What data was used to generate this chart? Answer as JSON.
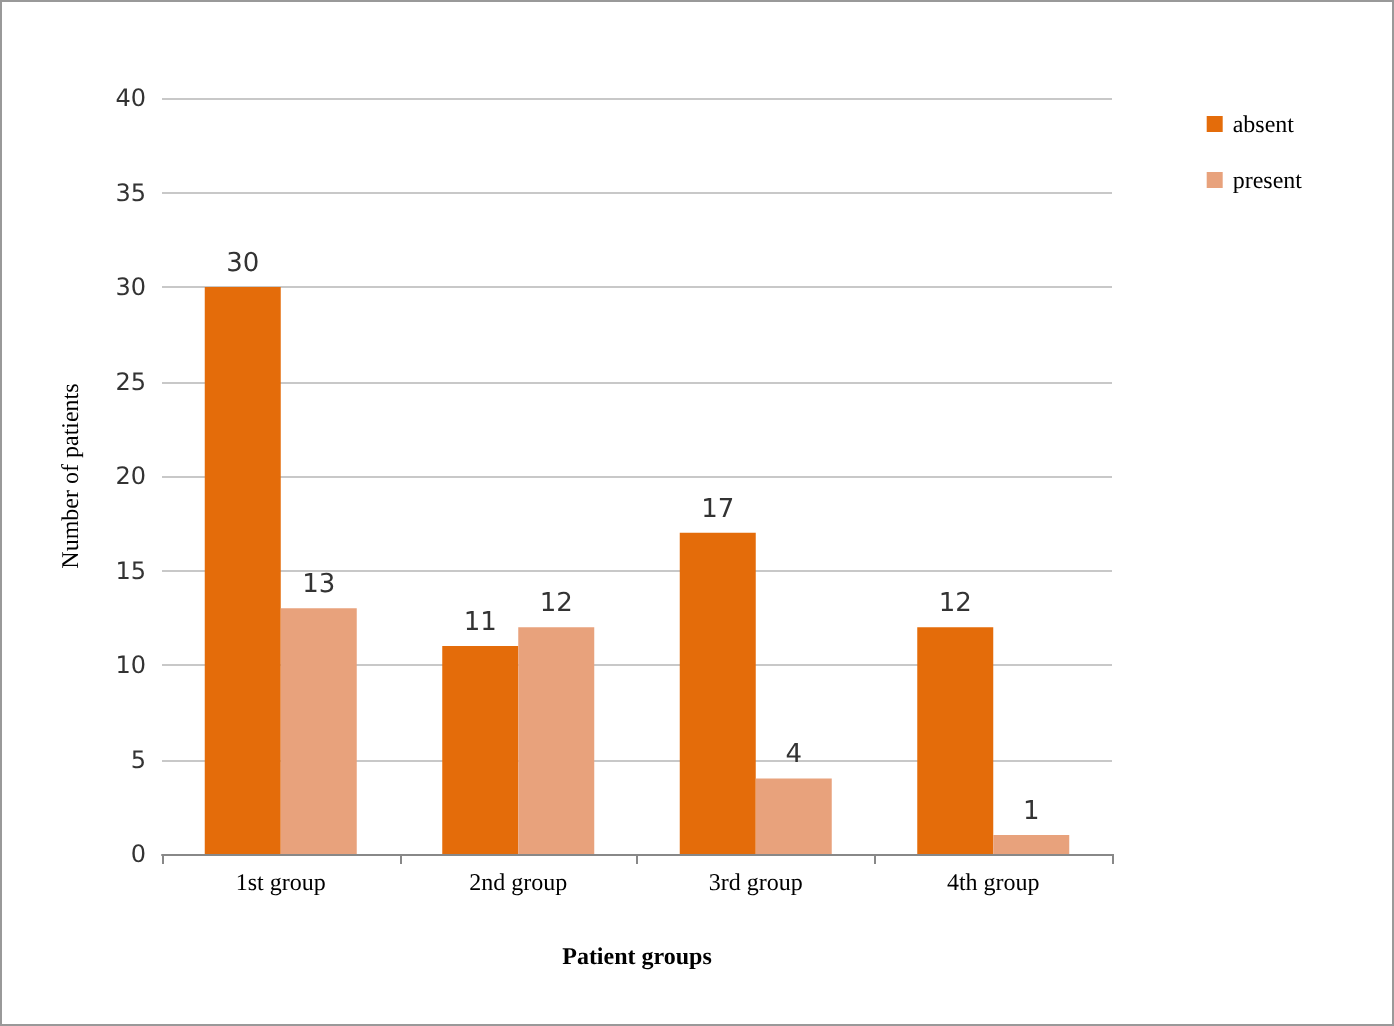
{
  "chart_data": {
    "type": "bar",
    "categories": [
      "1st group",
      "2nd group",
      "3rd group",
      "4th group"
    ],
    "series": [
      {
        "name": "absent",
        "color": "#e46c0a",
        "values": [
          30,
          11,
          17,
          12
        ]
      },
      {
        "name": "present",
        "color": "#e8a27c",
        "values": [
          13,
          12,
          4,
          1
        ]
      }
    ],
    "xlabel": "Patient groups",
    "ylabel": "Number of patients",
    "ylim": [
      0,
      40
    ],
    "yticks": [
      0,
      5,
      10,
      15,
      20,
      25,
      30,
      35,
      40
    ],
    "grid": "y",
    "legend": "top right",
    "data_labels": true
  }
}
